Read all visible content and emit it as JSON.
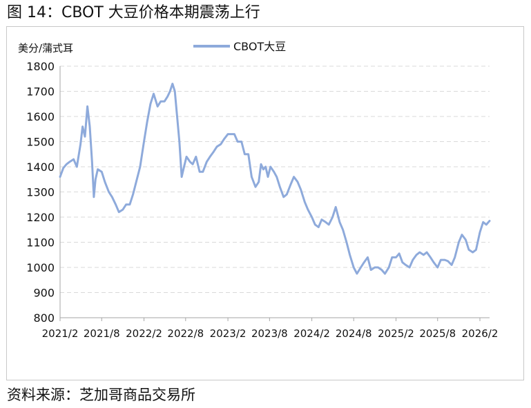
{
  "figure_title": "图 14：CBOT 大豆价格本期震荡上行",
  "source_note": "资料来源：芝加哥商品交易所",
  "chart_data": {
    "type": "line",
    "title": "",
    "ylabel": "美分/蒲式耳",
    "xlabel": "",
    "ylim": [
      800,
      1800
    ],
    "yticks": [
      "800",
      "900",
      "1000",
      "1100",
      "1200",
      "1300",
      "1400",
      "1500",
      "1600",
      "1700",
      "1800"
    ],
    "xlim": [
      "2021-02-01",
      "2026-03-15"
    ],
    "xticks": [
      "2021/2",
      "2021/8",
      "2022/2",
      "2022/8",
      "2023/2",
      "2023/8",
      "2024/2",
      "2024/8",
      "2025/2",
      "2025/8",
      "2026/2"
    ],
    "xtick_dates": [
      "2021-02-01",
      "2021-08-01",
      "2022-02-01",
      "2022-08-01",
      "2023-02-01",
      "2023-08-01",
      "2024-02-01",
      "2024-08-01",
      "2025-02-01",
      "2025-08-01",
      "2026-02-01"
    ],
    "grid": "horizontal dashed",
    "legend": "top",
    "series": [
      {
        "name": "CBOT大豆",
        "color": "#8eaadb",
        "points": [
          [
            "2021-02-01",
            1360
          ],
          [
            "2021-02-15",
            1395
          ],
          [
            "2021-03-01",
            1410
          ],
          [
            "2021-03-15",
            1420
          ],
          [
            "2021-04-01",
            1430
          ],
          [
            "2021-04-15",
            1400
          ],
          [
            "2021-05-01",
            1490
          ],
          [
            "2021-05-10",
            1560
          ],
          [
            "2021-05-20",
            1520
          ],
          [
            "2021-05-31",
            1640
          ],
          [
            "2021-06-10",
            1560
          ],
          [
            "2021-06-20",
            1420
          ],
          [
            "2021-06-28",
            1280
          ],
          [
            "2021-07-05",
            1350
          ],
          [
            "2021-07-15",
            1390
          ],
          [
            "2021-08-01",
            1380
          ],
          [
            "2021-08-15",
            1340
          ],
          [
            "2021-09-01",
            1300
          ],
          [
            "2021-09-15",
            1280
          ],
          [
            "2021-10-01",
            1250
          ],
          [
            "2021-10-15",
            1220
          ],
          [
            "2021-11-01",
            1230
          ],
          [
            "2021-11-15",
            1250
          ],
          [
            "2021-12-01",
            1250
          ],
          [
            "2021-12-15",
            1290
          ],
          [
            "2022-01-01",
            1350
          ],
          [
            "2022-01-15",
            1400
          ],
          [
            "2022-02-01",
            1500
          ],
          [
            "2022-02-15",
            1580
          ],
          [
            "2022-03-01",
            1650
          ],
          [
            "2022-03-15",
            1690
          ],
          [
            "2022-04-01",
            1640
          ],
          [
            "2022-04-15",
            1660
          ],
          [
            "2022-05-01",
            1660
          ],
          [
            "2022-05-15",
            1680
          ],
          [
            "2022-05-25",
            1700
          ],
          [
            "2022-06-05",
            1730
          ],
          [
            "2022-06-15",
            1700
          ],
          [
            "2022-06-25",
            1600
          ],
          [
            "2022-07-05",
            1500
          ],
          [
            "2022-07-15",
            1360
          ],
          [
            "2022-07-25",
            1400
          ],
          [
            "2022-08-05",
            1440
          ],
          [
            "2022-08-20",
            1420
          ],
          [
            "2022-09-01",
            1410
          ],
          [
            "2022-09-15",
            1440
          ],
          [
            "2022-10-01",
            1380
          ],
          [
            "2022-10-15",
            1380
          ],
          [
            "2022-11-01",
            1420
          ],
          [
            "2022-11-15",
            1440
          ],
          [
            "2022-12-01",
            1460
          ],
          [
            "2022-12-15",
            1480
          ],
          [
            "2023-01-01",
            1490
          ],
          [
            "2023-01-15",
            1510
          ],
          [
            "2023-02-01",
            1530
          ],
          [
            "2023-02-15",
            1530
          ],
          [
            "2023-03-01",
            1530
          ],
          [
            "2023-03-15",
            1500
          ],
          [
            "2023-04-01",
            1500
          ],
          [
            "2023-04-15",
            1450
          ],
          [
            "2023-05-01",
            1450
          ],
          [
            "2023-05-15",
            1360
          ],
          [
            "2023-06-01",
            1320
          ],
          [
            "2023-06-15",
            1340
          ],
          [
            "2023-06-25",
            1410
          ],
          [
            "2023-07-05",
            1390
          ],
          [
            "2023-07-15",
            1400
          ],
          [
            "2023-07-25",
            1360
          ],
          [
            "2023-08-05",
            1400
          ],
          [
            "2023-08-20",
            1380
          ],
          [
            "2023-09-01",
            1360
          ],
          [
            "2023-09-15",
            1320
          ],
          [
            "2023-10-01",
            1280
          ],
          [
            "2023-10-15",
            1290
          ],
          [
            "2023-11-01",
            1330
          ],
          [
            "2023-11-15",
            1360
          ],
          [
            "2023-12-01",
            1340
          ],
          [
            "2023-12-15",
            1310
          ],
          [
            "2024-01-01",
            1260
          ],
          [
            "2024-01-15",
            1230
          ],
          [
            "2024-02-01",
            1200
          ],
          [
            "2024-02-15",
            1170
          ],
          [
            "2024-03-01",
            1160
          ],
          [
            "2024-03-15",
            1190
          ],
          [
            "2024-04-01",
            1180
          ],
          [
            "2024-04-15",
            1170
          ],
          [
            "2024-05-01",
            1200
          ],
          [
            "2024-05-15",
            1240
          ],
          [
            "2024-06-01",
            1180
          ],
          [
            "2024-06-15",
            1150
          ],
          [
            "2024-07-01",
            1100
          ],
          [
            "2024-07-15",
            1050
          ],
          [
            "2024-08-01",
            1000
          ],
          [
            "2024-08-15",
            975
          ],
          [
            "2024-09-01",
            1000
          ],
          [
            "2024-09-15",
            1020
          ],
          [
            "2024-10-01",
            1040
          ],
          [
            "2024-10-15",
            990
          ],
          [
            "2024-11-01",
            1000
          ],
          [
            "2024-11-15",
            1000
          ],
          [
            "2024-12-01",
            990
          ],
          [
            "2024-12-15",
            975
          ],
          [
            "2025-01-01",
            1000
          ],
          [
            "2025-01-15",
            1040
          ],
          [
            "2025-02-01",
            1040
          ],
          [
            "2025-02-15",
            1055
          ],
          [
            "2025-03-01",
            1020
          ],
          [
            "2025-03-15",
            1010
          ],
          [
            "2025-04-01",
            1000
          ],
          [
            "2025-04-15",
            1030
          ],
          [
            "2025-05-01",
            1050
          ],
          [
            "2025-05-15",
            1060
          ],
          [
            "2025-06-01",
            1050
          ],
          [
            "2025-06-15",
            1060
          ],
          [
            "2025-07-01",
            1040
          ],
          [
            "2025-07-15",
            1020
          ],
          [
            "2025-08-01",
            1000
          ],
          [
            "2025-08-15",
            1030
          ],
          [
            "2025-09-01",
            1030
          ],
          [
            "2025-09-15",
            1025
          ],
          [
            "2025-10-01",
            1010
          ],
          [
            "2025-10-15",
            1040
          ],
          [
            "2025-11-01",
            1100
          ],
          [
            "2025-11-15",
            1130
          ],
          [
            "2025-12-01",
            1110
          ],
          [
            "2025-12-15",
            1070
          ],
          [
            "2026-01-01",
            1060
          ],
          [
            "2026-01-15",
            1070
          ],
          [
            "2026-02-01",
            1140
          ],
          [
            "2026-02-15",
            1180
          ],
          [
            "2026-03-01",
            1170
          ],
          [
            "2026-03-15",
            1185
          ]
        ]
      }
    ]
  }
}
